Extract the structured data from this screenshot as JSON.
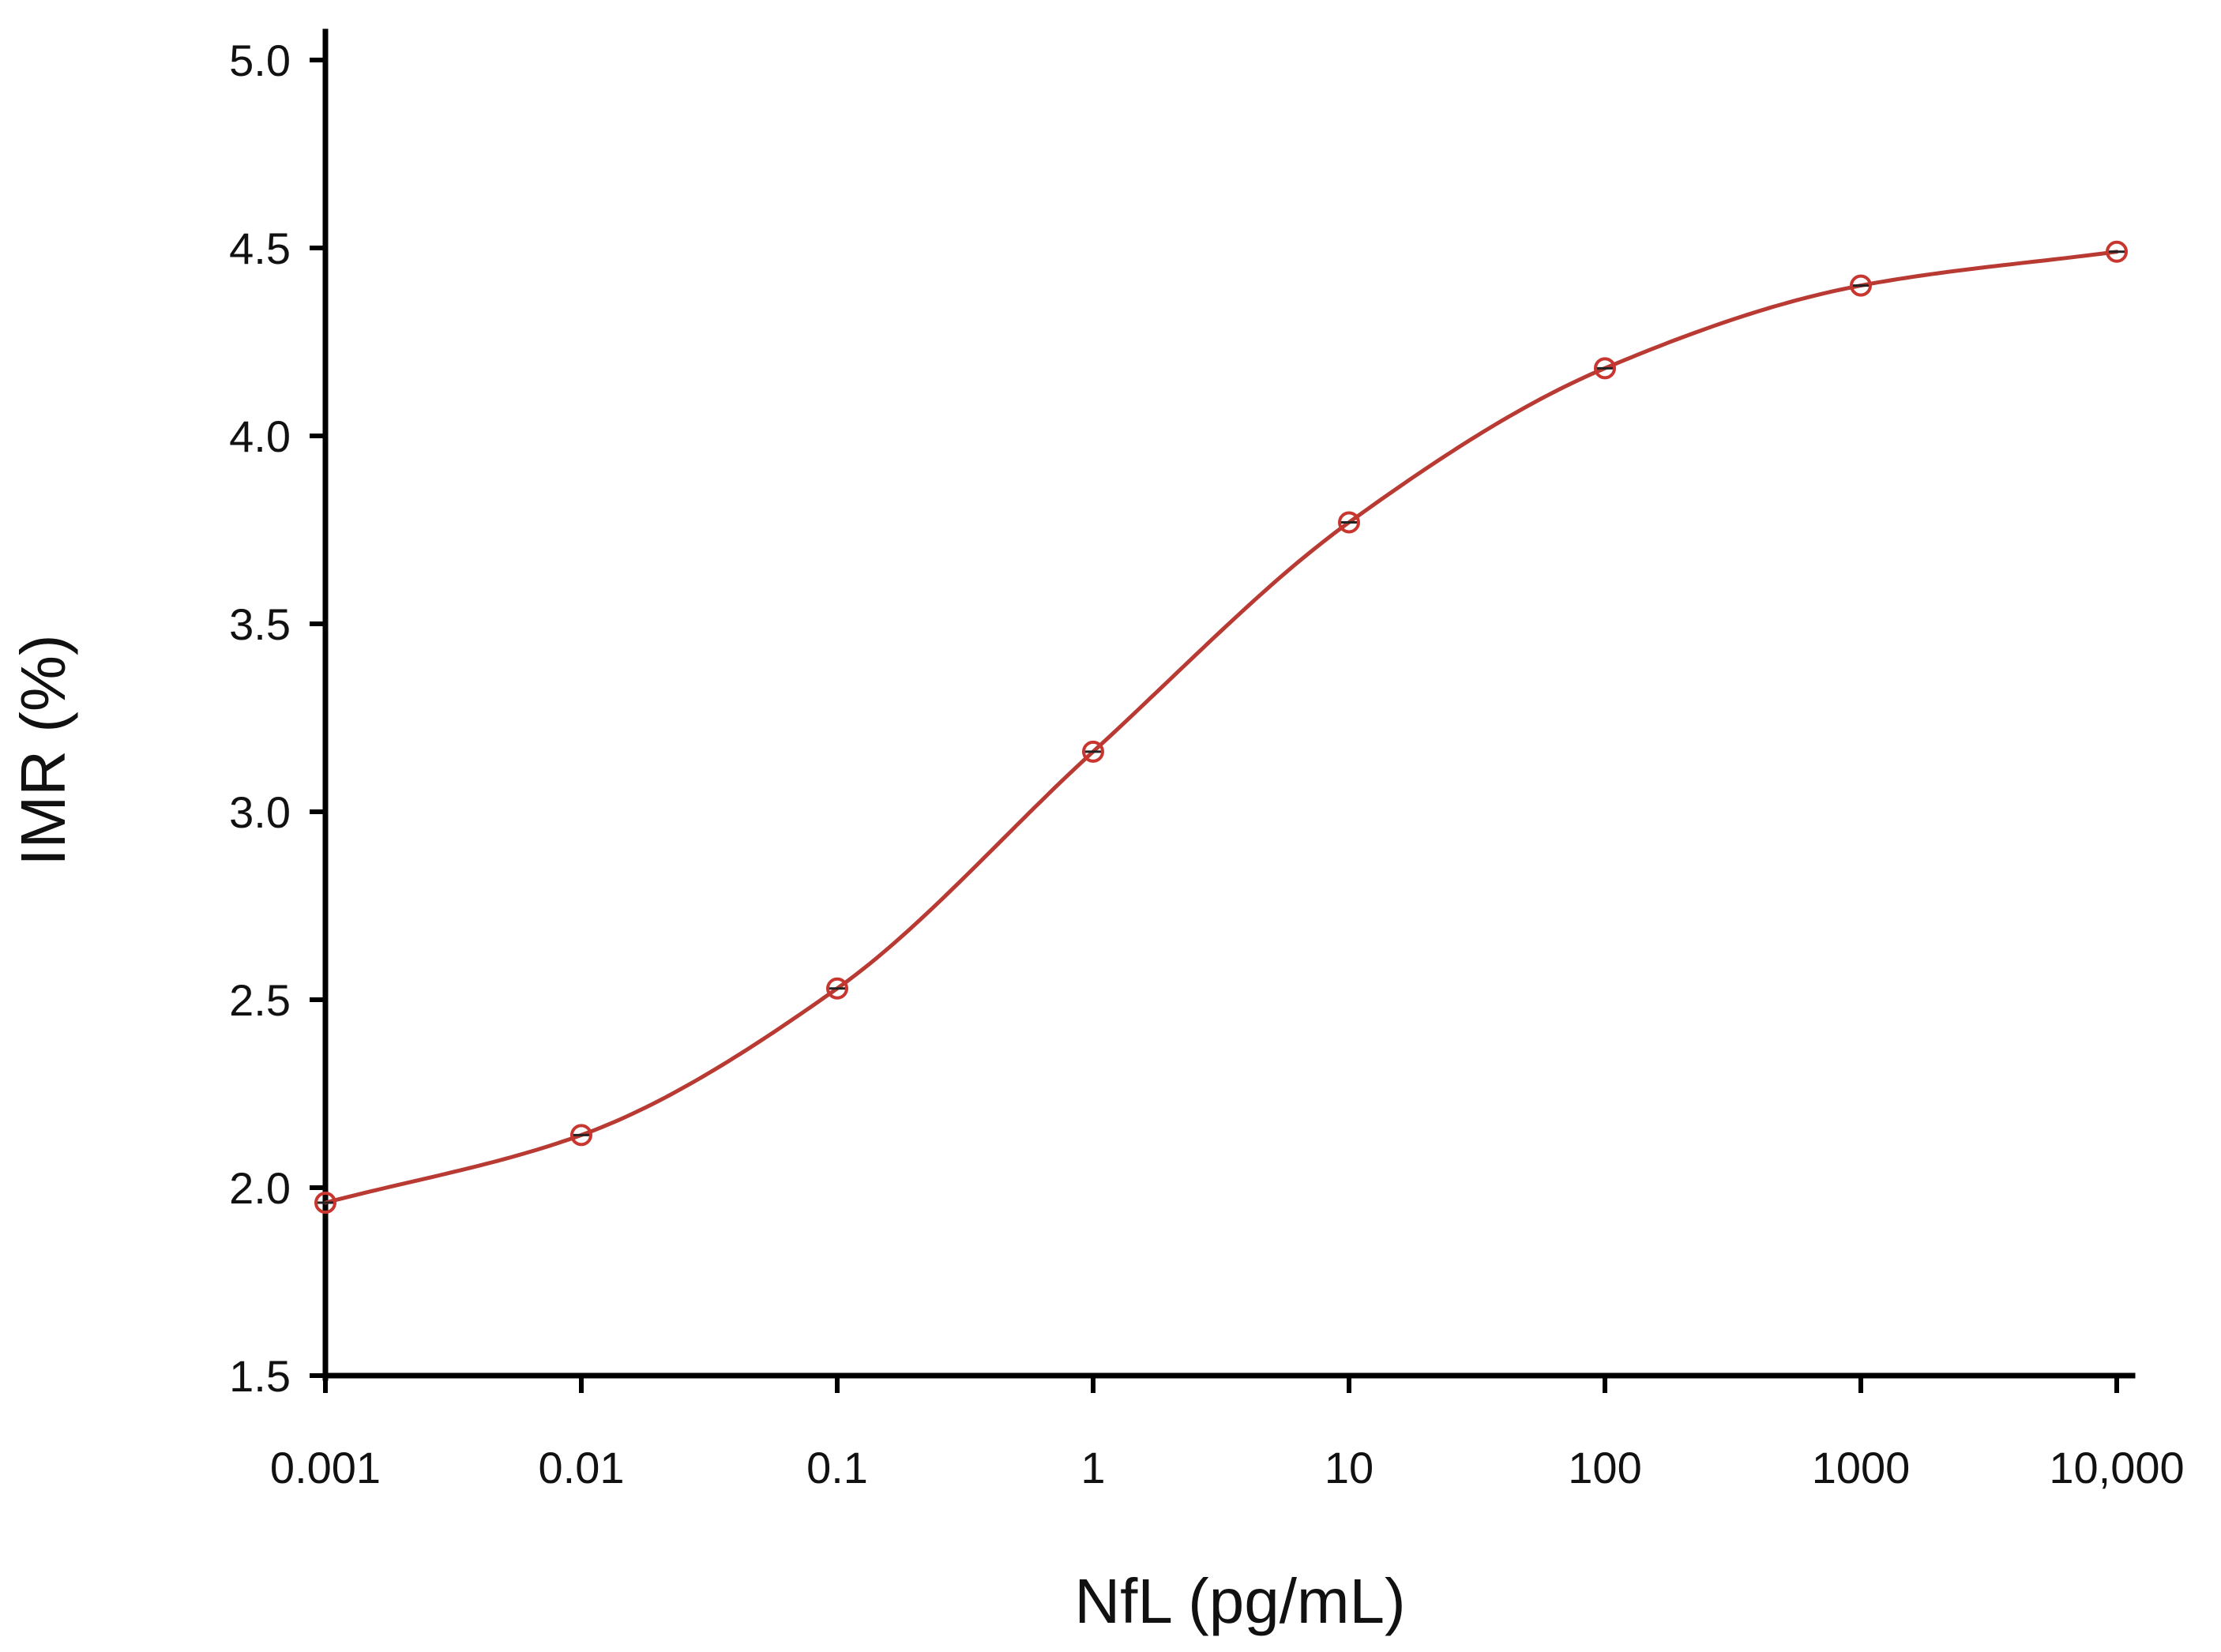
{
  "chart_data": {
    "type": "line",
    "title": "",
    "xlabel": "NfL (pg/mL)",
    "ylabel": "IMR (%)",
    "x_scale": "log",
    "xlim": [
      0.001,
      10000
    ],
    "ylim": [
      1.5,
      5.0
    ],
    "x_ticks": [
      0.001,
      0.01,
      0.1,
      1,
      10,
      100,
      1000,
      10000
    ],
    "x_tick_labels": [
      "0.001",
      "0.01",
      "0.1",
      "1",
      "10",
      "100",
      "1000",
      "10,000"
    ],
    "y_ticks": [
      1.5,
      2.0,
      2.5,
      3.0,
      3.5,
      4.0,
      4.5,
      5.0
    ],
    "y_tick_labels": [
      "1.5",
      "2.0",
      "2.5",
      "3.0",
      "3.5",
      "4.0",
      "4.5",
      "5.0"
    ],
    "grid": false,
    "legend": "none",
    "series": [
      {
        "x": [
          0.001,
          0.01,
          0.1,
          1,
          10,
          100,
          1000,
          10000
        ],
        "y": [
          1.96,
          2.14,
          2.53,
          3.16,
          3.77,
          4.18,
          4.4,
          4.49
        ],
        "marker": "open-circle",
        "color": "#c8362f",
        "line": "smooth-fit"
      }
    ]
  }
}
